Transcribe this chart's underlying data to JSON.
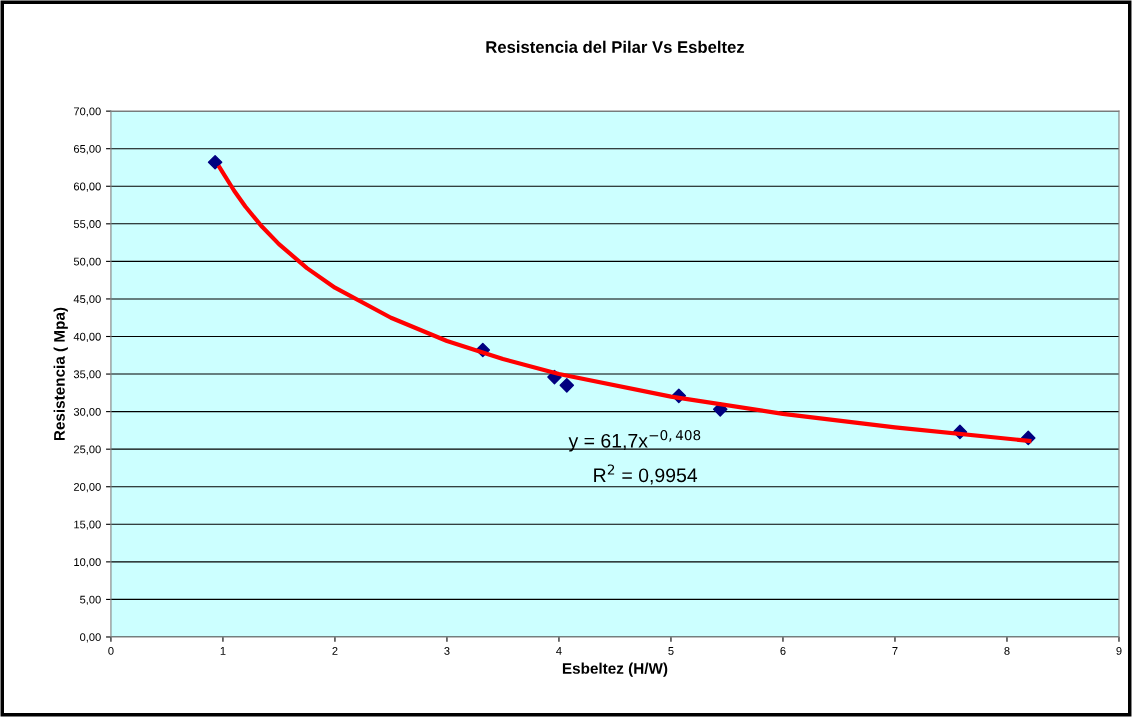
{
  "chart_data": {
    "type": "scatter",
    "title": "Resistencia del Pilar Vs Esbeltez",
    "xlabel": "Esbeltez (H/W)",
    "ylabel": "Resistencia ( Mpa)",
    "series": [
      {
        "color": "#000080",
        "marker": "diamond",
        "x": [
          0.93,
          3.32,
          3.96,
          4.07,
          5.07,
          5.44,
          7.58,
          8.19
        ],
        "values": [
          63.2,
          38.2,
          34.6,
          33.5,
          32.1,
          30.3,
          27.3,
          26.5
        ]
      },
      {
        "type": "line",
        "color": "#ff0000",
        "marker": "none",
        "x": [
          0.97,
          1.1,
          1.2,
          1.35,
          1.5,
          1.75,
          2,
          2.5,
          3,
          3.5,
          4,
          5,
          6,
          7,
          8.2
        ],
        "values": [
          62.5,
          59.4,
          57.3,
          54.6,
          52.3,
          49.1,
          46.5,
          42.5,
          39.4,
          37.0,
          35.0,
          32.0,
          29.7,
          27.9,
          26.1
        ]
      }
    ],
    "xlim": [
      0,
      9
    ],
    "xticks": [
      0,
      1,
      2,
      3,
      4,
      5,
      6,
      7,
      8,
      9
    ],
    "ylim": [
      0,
      70
    ],
    "yticks": [
      {
        "value": 0,
        "label": "0,00"
      },
      {
        "value": 5,
        "label": "5,00"
      },
      {
        "value": 10,
        "label": "10,00"
      },
      {
        "value": 15,
        "label": "15,00"
      },
      {
        "value": 20,
        "label": "20,00"
      },
      {
        "value": 25,
        "label": "25,00"
      },
      {
        "value": 30,
        "label": "30,00"
      },
      {
        "value": 35,
        "label": "35,00"
      },
      {
        "value": 40,
        "label": "40,00"
      },
      {
        "value": 45,
        "label": "45,00"
      },
      {
        "value": 50,
        "label": "50,00"
      },
      {
        "value": 55,
        "label": "55,00"
      },
      {
        "value": 60,
        "label": "60,00"
      },
      {
        "value": 65,
        "label": "65,00"
      },
      {
        "value": 70,
        "label": "70,00"
      }
    ],
    "grid": "y",
    "legend": false,
    "annotations": [
      "y = 61,7x$^{−0,408}$",
      "R$^{2}$ = 0,9954"
    ]
  }
}
